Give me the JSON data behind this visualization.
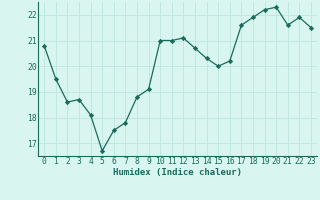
{
  "x": [
    0,
    1,
    2,
    3,
    4,
    5,
    6,
    7,
    8,
    9,
    10,
    11,
    12,
    13,
    14,
    15,
    16,
    17,
    18,
    19,
    20,
    21,
    22,
    23
  ],
  "y": [
    20.8,
    19.5,
    18.6,
    18.7,
    18.1,
    16.7,
    17.5,
    17.8,
    18.8,
    19.1,
    21.0,
    21.0,
    21.1,
    20.7,
    20.3,
    20.0,
    20.2,
    21.6,
    21.9,
    22.2,
    22.3,
    21.6,
    21.9,
    21.5
  ],
  "line_color": "#1a6b5a",
  "marker": "D",
  "marker_size": 2.2,
  "bg_color": "#d8f5f0",
  "grid_color": "#c0e8e0",
  "xlabel": "Humidex (Indice chaleur)",
  "xlabel_color": "#1a6b5a",
  "tick_color": "#1a6b5a",
  "ylim": [
    16.5,
    22.5
  ],
  "yticks": [
    17,
    18,
    19,
    20,
    21,
    22
  ],
  "xticks": [
    0,
    1,
    2,
    3,
    4,
    5,
    6,
    7,
    8,
    9,
    10,
    11,
    12,
    13,
    14,
    15,
    16,
    17,
    18,
    19,
    20,
    21,
    22,
    23
  ],
  "tick_fontsize": 5.8,
  "xlabel_fontsize": 6.5,
  "linewidth": 0.9
}
